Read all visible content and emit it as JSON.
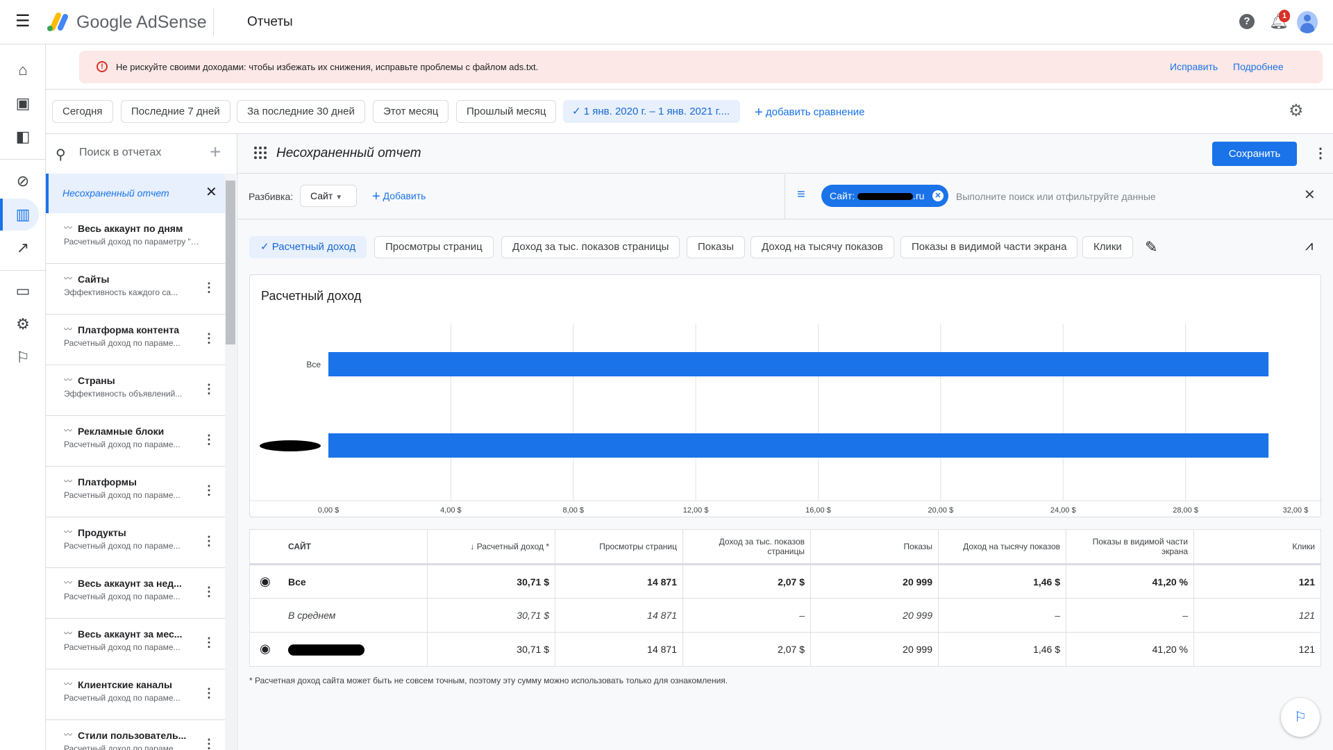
{
  "header": {
    "title": "Отчеты",
    "product": "Google AdSense",
    "notification_count": "1"
  },
  "alert": {
    "text": "Не рискуйте своими доходами: чтобы избежать их снижения, исправьте проблемы с файлом ads.txt.",
    "fix": "Исправить",
    "more": "Подробнее"
  },
  "date_ranges": [
    "Сегодня",
    "Последние 7 дней",
    "За последние 30 дней",
    "Этот месяц",
    "Прошлый месяц"
  ],
  "selected_range": "1 янв. 2020 г. – 1 янв. 2021 г....",
  "add_comparison": "добавить сравнение",
  "report_list": {
    "search_placeholder": "Поиск в отчетах",
    "active": "Несохраненный отчет",
    "items": [
      {
        "title": "Весь аккаунт по дням",
        "subtitle": "Расчетный доход по параметру \"Д..."
      },
      {
        "title": "Сайты",
        "subtitle": "Эффективность каждого са..."
      },
      {
        "title": "Платформа контента",
        "subtitle": "Расчетный доход по параме..."
      },
      {
        "title": "Страны",
        "subtitle": "Эффективность объявлений..."
      },
      {
        "title": "Рекламные блоки",
        "subtitle": "Расчетный доход по параме..."
      },
      {
        "title": "Платформы",
        "subtitle": "Расчетный доход по параме..."
      },
      {
        "title": "Продукты",
        "subtitle": "Расчетный доход по параме..."
      },
      {
        "title": "Весь аккаунт за нед...",
        "subtitle": "Расчетный доход по параме..."
      },
      {
        "title": "Весь аккаунт за мес...",
        "subtitle": "Расчетный доход по параме..."
      },
      {
        "title": "Клиентские каналы",
        "subtitle": "Расчетный доход по параме..."
      },
      {
        "title": "Стили пользователь...",
        "subtitle": "Расчетный доход по параме..."
      }
    ]
  },
  "report": {
    "title": "Несохраненный отчет",
    "save": "Сохранить",
    "breakdown_label": "Разбивка:",
    "breakdown_value": "Сайт",
    "add": "Добавить",
    "filter_chip": "Сайт:",
    "filter_chip_suffix": ".ru",
    "filter_placeholder": "Выполните поиск или отфильтруйте данные"
  },
  "metrics": [
    "Расчетный доход",
    "Просмотры страниц",
    "Доход за тыс. показов страницы",
    "Показы",
    "Доход на тысячу показов",
    "Показы в видимой части экрана",
    "Клики"
  ],
  "chart_data": {
    "type": "bar",
    "orientation": "horizontal",
    "title": "Расчетный доход",
    "categories": [
      "Все",
      ""
    ],
    "values": [
      30.71,
      30.71
    ],
    "xlim": [
      0,
      32
    ],
    "xticks": [
      "0,00 $",
      "4,00 $",
      "8,00 $",
      "12,00 $",
      "16,00 $",
      "20,00 $",
      "24,00 $",
      "28,00 $",
      "32,00 $"
    ],
    "grid": true,
    "color": "#1a73e8"
  },
  "table": {
    "headers": [
      "САЙТ",
      "Расчетный доход *",
      "Просмотры страниц",
      "Доход за тыс. показов страницы",
      "Показы",
      "Доход на тысячу показов",
      "Показы в видимой части экрана",
      "Клики"
    ],
    "rows": [
      [
        "Все",
        "30,71 $",
        "14 871",
        "2,07 $",
        "20 999",
        "1,46 $",
        "41,20 %",
        "121"
      ],
      [
        "В среднем",
        "30,71 $",
        "14 871",
        "–",
        "20 999",
        "–",
        "–",
        "121"
      ],
      [
        "",
        "30,71 $",
        "14 871",
        "2,07 $",
        "20 999",
        "1,46 $",
        "41,20 %",
        "121"
      ]
    ]
  },
  "footnote": "* Расчетная доход сайта может быть не совсем точным, поэтому эту сумму можно использовать только для ознакомления."
}
